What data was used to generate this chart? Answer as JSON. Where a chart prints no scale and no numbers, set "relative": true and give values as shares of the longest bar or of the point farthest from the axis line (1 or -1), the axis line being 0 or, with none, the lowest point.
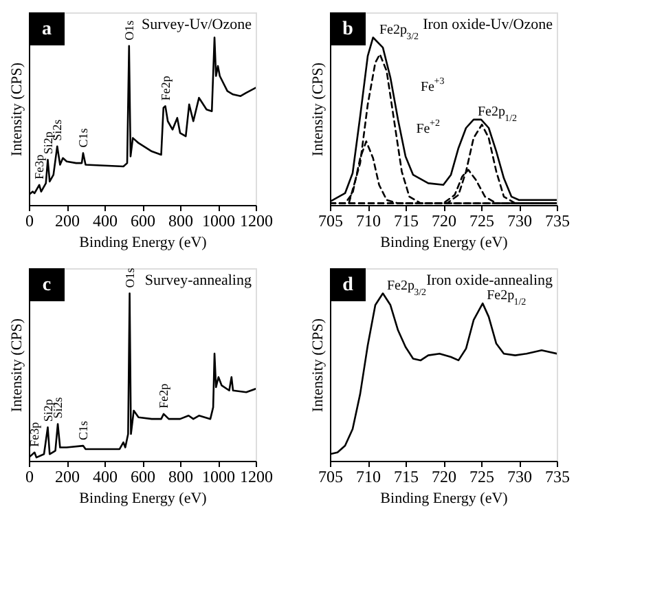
{
  "chart_data": [
    {
      "type": "line",
      "title": "Survey-Uv/Ozone",
      "xlabel": "Binding Energy (eV)",
      "ylabel": "Intensity (CPS)",
      "relative": true,
      "tick_labels": "x",
      "grid": false,
      "marker": "none",
      "xlim": [
        0,
        1200
      ],
      "xticks": [
        0,
        200,
        400,
        600,
        800,
        1000,
        1200
      ],
      "series": [
        {
          "color": "#000000",
          "line_style": "solid",
          "x": [
            0,
            20,
            30,
            55,
            65,
            90,
            100,
            110,
            130,
            150,
            165,
            180,
            200,
            250,
            280,
            287,
            300,
            400,
            500,
            520,
            530,
            538,
            550,
            580,
            650,
            700,
            712,
            722,
            735,
            760,
            785,
            800,
            830,
            848,
            870,
            900,
            940,
            968,
            982,
            990,
            1000,
            1010,
            1050,
            1080,
            1120,
            1150,
            1200
          ],
          "values": [
            0.06,
            0.08,
            0.07,
            0.12,
            0.08,
            0.13,
            0.27,
            0.14,
            0.18,
            0.35,
            0.24,
            0.28,
            0.26,
            0.25,
            0.25,
            0.31,
            0.24,
            0.235,
            0.23,
            0.25,
            0.95,
            0.29,
            0.4,
            0.37,
            0.32,
            0.3,
            0.58,
            0.59,
            0.5,
            0.45,
            0.52,
            0.43,
            0.41,
            0.6,
            0.5,
            0.64,
            0.57,
            0.56,
            1.0,
            0.77,
            0.83,
            0.77,
            0.68,
            0.66,
            0.65,
            0.67,
            0.7
          ]
        }
      ],
      "annotations": [
        "a",
        {
          "text": "Fe3p",
          "x": 55,
          "y": 0.12
        },
        {
          "text": "Si2p",
          "x": 100,
          "y": 0.27
        },
        {
          "text": "Si2s",
          "x": 150,
          "y": 0.35
        },
        {
          "text": "C1s",
          "x": 287,
          "y": 0.31
        },
        {
          "text": "O1s",
          "x": 530,
          "y": 0.95
        },
        {
          "text": "Fe2p",
          "x": 722,
          "y": 0.59
        }
      ]
    },
    {
      "type": "line",
      "title": "Iron oxide-Uv/Ozone",
      "xlabel": "Binding Energy (eV)",
      "ylabel": "Intensity (CPS)",
      "relative": true,
      "tick_labels": "x",
      "grid": false,
      "marker": "none",
      "xlim": [
        705,
        735
      ],
      "xticks": [
        705,
        710,
        715,
        720,
        725,
        730,
        735
      ],
      "series": [
        {
          "color": "#000000",
          "line_style": "solid",
          "x": [
            705,
            707,
            708,
            709,
            710,
            710.7,
            712,
            713,
            714,
            715,
            716,
            718,
            720,
            721,
            722,
            723,
            724,
            725,
            726,
            727,
            728,
            729,
            730,
            735
          ],
          "values": [
            0.02,
            0.07,
            0.19,
            0.53,
            0.89,
            1.0,
            0.94,
            0.76,
            0.51,
            0.29,
            0.18,
            0.13,
            0.12,
            0.18,
            0.34,
            0.46,
            0.51,
            0.51,
            0.46,
            0.32,
            0.16,
            0.05,
            0.03,
            0.03
          ]
        },
        {
          "color": "#000000",
          "line_style": "dashed",
          "x": [
            705,
            707.5,
            709,
            710,
            711,
            711.6,
            712.5,
            713.5,
            714.5,
            715.5,
            717,
            735
          ],
          "values": [
            0.01,
            0.01,
            0.25,
            0.6,
            0.85,
            0.9,
            0.8,
            0.5,
            0.2,
            0.05,
            0.01,
            0.01
          ]
        },
        {
          "color": "#000000",
          "line_style": "dashed",
          "x": [
            705,
            707,
            708,
            709,
            709.8,
            710.7,
            711.5,
            712.5,
            714,
            735
          ],
          "values": [
            0.01,
            0.01,
            0.07,
            0.28,
            0.38,
            0.28,
            0.12,
            0.03,
            0.01,
            0.01
          ]
        },
        {
          "color": "#000000",
          "line_style": "dashed",
          "x": [
            705,
            720.5,
            722,
            723,
            724,
            725.1,
            726,
            727,
            728,
            729.5,
            735
          ],
          "values": [
            0.01,
            0.01,
            0.06,
            0.2,
            0.4,
            0.48,
            0.4,
            0.2,
            0.05,
            0.01,
            0.01
          ]
        },
        {
          "color": "#000000",
          "line_style": "dashed",
          "x": [
            705,
            720,
            721.5,
            722.5,
            723.3,
            724.3,
            725.5,
            727,
            735
          ],
          "values": [
            0.01,
            0.01,
            0.06,
            0.17,
            0.21,
            0.15,
            0.05,
            0.01,
            0.01
          ]
        }
      ],
      "annotations": [
        "b",
        {
          "text": "Fe2p$_{3/2}$",
          "x": 711,
          "y": 1.0
        },
        {
          "text": "Fe2p$_{1/2}$",
          "x": 724,
          "y": 0.51
        },
        "Fe$^{+3}$",
        "Fe$^{+2}$"
      ]
    },
    {
      "type": "line",
      "title": "Survey-annealing",
      "xlabel": "Binding Energy (eV)",
      "ylabel": "Intensity (CPS)",
      "relative": true,
      "tick_labels": "x",
      "grid": false,
      "marker": "none",
      "xlim": [
        0,
        1200
      ],
      "xticks": [
        0,
        200,
        400,
        600,
        800,
        1000,
        1200
      ],
      "series": [
        {
          "color": "#000000",
          "line_style": "solid",
          "x": [
            0,
            30,
            40,
            80,
            100,
            110,
            140,
            153,
            165,
            200,
            287,
            300,
            400,
            480,
            500,
            510,
            525,
            533,
            540,
            555,
            580,
            650,
            700,
            713,
            740,
            800,
            845,
            870,
            900,
            960,
            975,
            982,
            990,
            1003,
            1020,
            1060,
            1072,
            1080,
            1150,
            1200
          ],
          "values": [
            0.02,
            0.05,
            0.02,
            0.04,
            0.2,
            0.04,
            0.06,
            0.22,
            0.08,
            0.08,
            0.09,
            0.07,
            0.07,
            0.07,
            0.11,
            0.08,
            0.16,
            1.0,
            0.16,
            0.3,
            0.26,
            0.25,
            0.25,
            0.28,
            0.25,
            0.25,
            0.27,
            0.25,
            0.27,
            0.25,
            0.32,
            0.64,
            0.44,
            0.5,
            0.45,
            0.42,
            0.5,
            0.42,
            0.41,
            0.43
          ]
        }
      ],
      "annotations": [
        "c",
        {
          "text": "Fe3p",
          "x": 30,
          "y": 0.05
        },
        {
          "text": "Si2p",
          "x": 100,
          "y": 0.2
        },
        {
          "text": "Si2s",
          "x": 153,
          "y": 0.22
        },
        {
          "text": "C1s",
          "x": 287,
          "y": 0.09
        },
        {
          "text": "O1s",
          "x": 533,
          "y": 1.0
        },
        {
          "text": "Fe2p",
          "x": 713,
          "y": 0.28
        }
      ]
    },
    {
      "type": "line",
      "title": "Iron oxide-annealing",
      "xlabel": "Binding Energy (eV)",
      "ylabel": "Intensity (CPS)",
      "relative": true,
      "tick_labels": "x",
      "grid": false,
      "marker": "none",
      "xlim": [
        705,
        735
      ],
      "xticks": [
        705,
        710,
        715,
        720,
        725,
        730,
        735
      ],
      "series": [
        {
          "color": "#000000",
          "line_style": "solid",
          "x": [
            705,
            706,
            707,
            708,
            709,
            710,
            711,
            712,
            713,
            714,
            715,
            716,
            717,
            718,
            719.5,
            721,
            722,
            723,
            724,
            725.2,
            726,
            727,
            728,
            729.5,
            731,
            733,
            735
          ],
          "values": [
            0.04,
            0.05,
            0.09,
            0.19,
            0.4,
            0.69,
            0.93,
            1.0,
            0.93,
            0.78,
            0.68,
            0.61,
            0.6,
            0.63,
            0.64,
            0.62,
            0.6,
            0.67,
            0.84,
            0.94,
            0.86,
            0.7,
            0.64,
            0.63,
            0.64,
            0.66,
            0.64
          ]
        }
      ],
      "annotations": [
        "d",
        {
          "text": "Fe2p$_{3/2}$",
          "x": 712,
          "y": 1.0
        },
        {
          "text": "Fe2p$_{1/2}$",
          "x": 725.2,
          "y": 0.94
        }
      ]
    }
  ]
}
